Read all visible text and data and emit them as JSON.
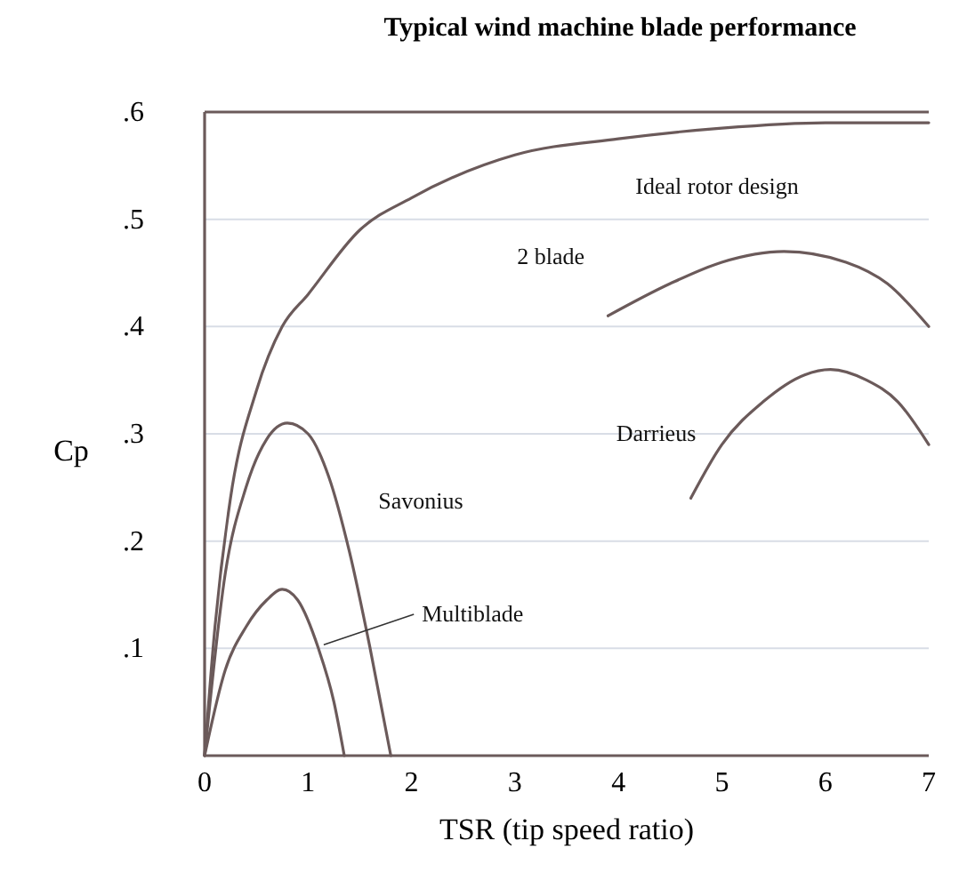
{
  "chart_data": {
    "type": "line",
    "title": "Typical wind machine blade performance",
    "xlabel": "TSR (tip speed ratio)",
    "ylabel": "Cp",
    "xlim": [
      0,
      7
    ],
    "xticks": [
      0,
      1,
      2,
      3,
      4,
      5,
      6,
      7
    ],
    "ylim": [
      0,
      0.6
    ],
    "yticks": [
      {
        "value": 0.1,
        "label": ".1"
      },
      {
        "value": 0.2,
        "label": ".2"
      },
      {
        "value": 0.3,
        "label": ".3"
      },
      {
        "value": 0.4,
        "label": ".4"
      },
      {
        "value": 0.5,
        "label": ".5"
      },
      {
        "value": 0.6,
        "label": ".6"
      }
    ],
    "grid": "y",
    "marker": "none",
    "line_style": "solid",
    "series": [
      {
        "name": "Ideal rotor design",
        "color": "#6b5a5a",
        "x": [
          0,
          0.1,
          0.25,
          0.5,
          0.75,
          1,
          1.5,
          2,
          3,
          4,
          5,
          6,
          7
        ],
        "values": [
          0,
          0.12,
          0.24,
          0.34,
          0.4,
          0.43,
          0.49,
          0.52,
          0.56,
          0.575,
          0.585,
          0.59,
          0.59
        ]
      },
      {
        "name": "2 blade",
        "color": "#6b5a5a",
        "x": [
          3.9,
          4.5,
          5,
          5.6,
          6.2,
          6.6,
          7
        ],
        "values": [
          0.41,
          0.44,
          0.46,
          0.47,
          0.46,
          0.44,
          0.4
        ]
      },
      {
        "name": "Darrieus",
        "color": "#6b5a5a",
        "x": [
          4.7,
          5,
          5.4,
          5.8,
          6.05,
          6.4,
          6.7,
          7
        ],
        "values": [
          0.24,
          0.29,
          0.33,
          0.355,
          0.36,
          0.35,
          0.33,
          0.29
        ]
      },
      {
        "name": "Savonius",
        "color": "#6b5a5a",
        "x": [
          0,
          0.2,
          0.4,
          0.6,
          0.8,
          1,
          1.2,
          1.4,
          1.6,
          1.8
        ],
        "values": [
          0,
          0.17,
          0.25,
          0.295,
          0.31,
          0.3,
          0.26,
          0.19,
          0.1,
          0
        ]
      },
      {
        "name": "Multiblade",
        "color": "#6b5a5a",
        "x": [
          0,
          0.2,
          0.4,
          0.6,
          0.75,
          0.9,
          1.1,
          1.25,
          1.35
        ],
        "values": [
          0,
          0.08,
          0.12,
          0.145,
          0.155,
          0.145,
          0.1,
          0.05,
          0
        ]
      }
    ]
  }
}
